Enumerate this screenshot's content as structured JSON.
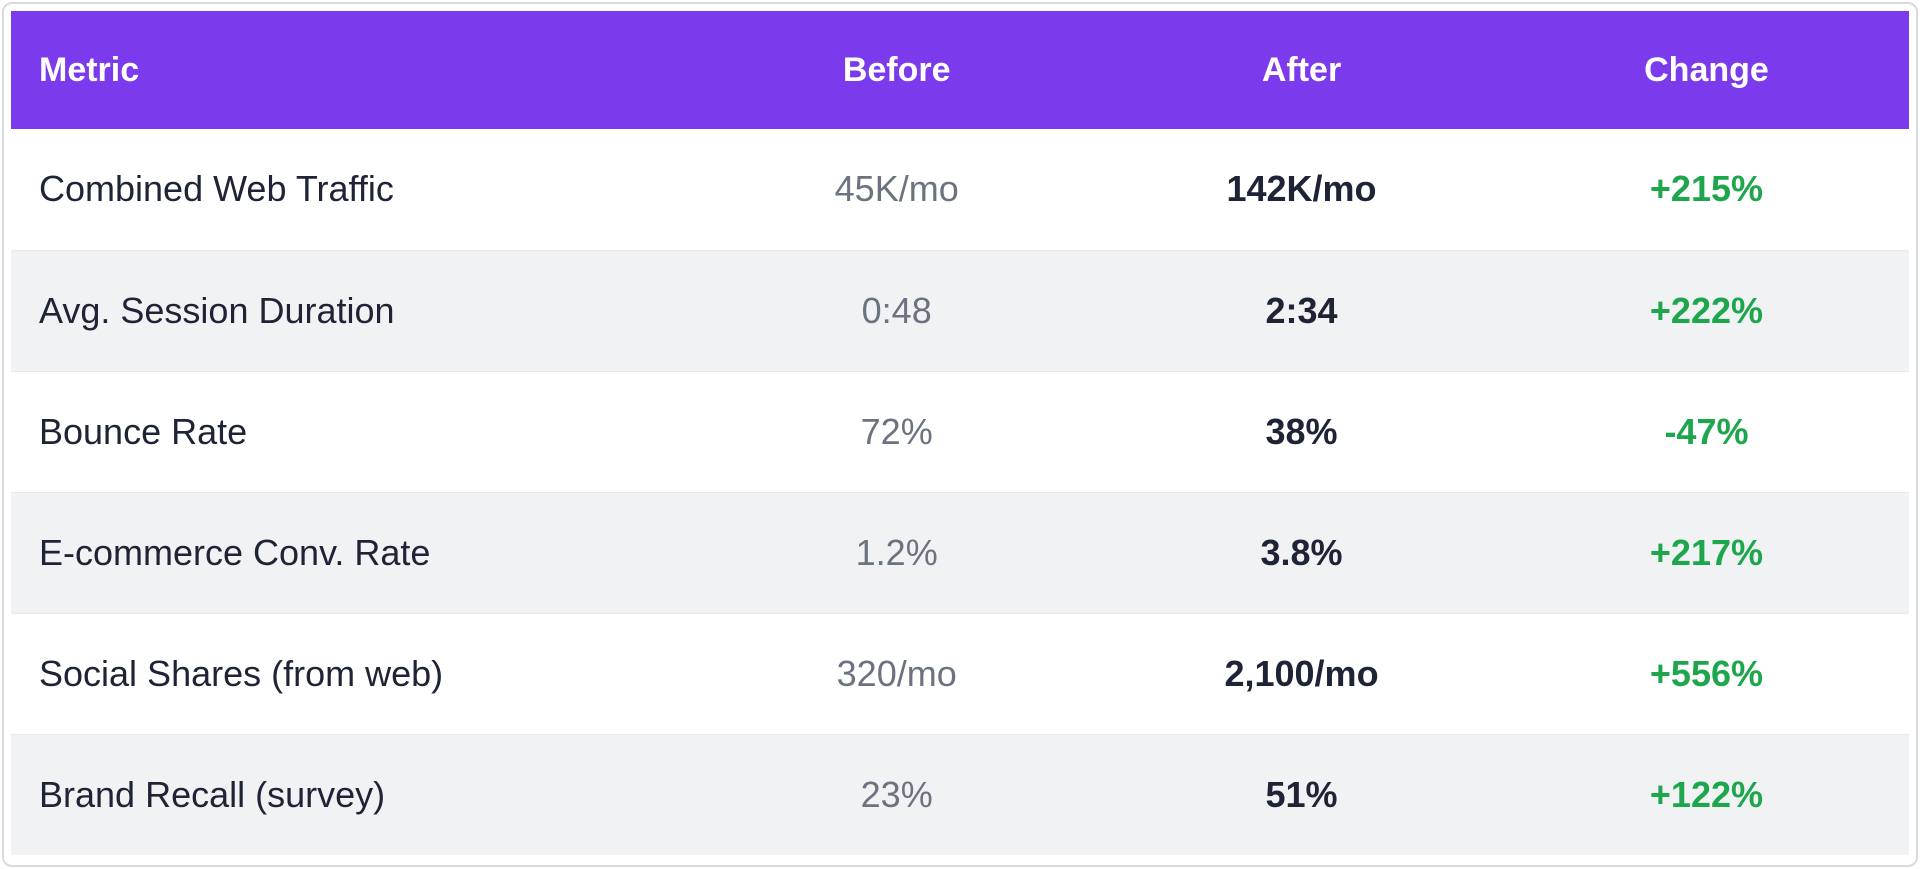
{
  "colors": {
    "header_bg": "#7c3aed",
    "header_text": "#ffffff",
    "row_bg": "#ffffff",
    "row_alt_bg": "#f1f2f4",
    "metric_text": "#1e2335",
    "before_text": "#6b7280",
    "after_text": "#1e2335",
    "change_text": "#1ea64d",
    "frame_border": "#d7dadf"
  },
  "chart_data": {
    "type": "table",
    "columns": [
      "Metric",
      "Before",
      "After",
      "Change"
    ],
    "rows": [
      [
        "Combined Web Traffic",
        "45K/mo",
        "142K/mo",
        "+215%"
      ],
      [
        "Avg. Session Duration",
        "0:48",
        "2:34",
        "+222%"
      ],
      [
        "Bounce Rate",
        "72%",
        "38%",
        "-47%"
      ],
      [
        "E-commerce Conv. Rate",
        "1.2%",
        "3.8%",
        "+217%"
      ],
      [
        "Social Shares (from web)",
        "320/mo",
        "2,100/mo",
        "+556%"
      ],
      [
        "Brand Recall (survey)",
        "23%",
        "51%",
        "+122%"
      ]
    ]
  }
}
